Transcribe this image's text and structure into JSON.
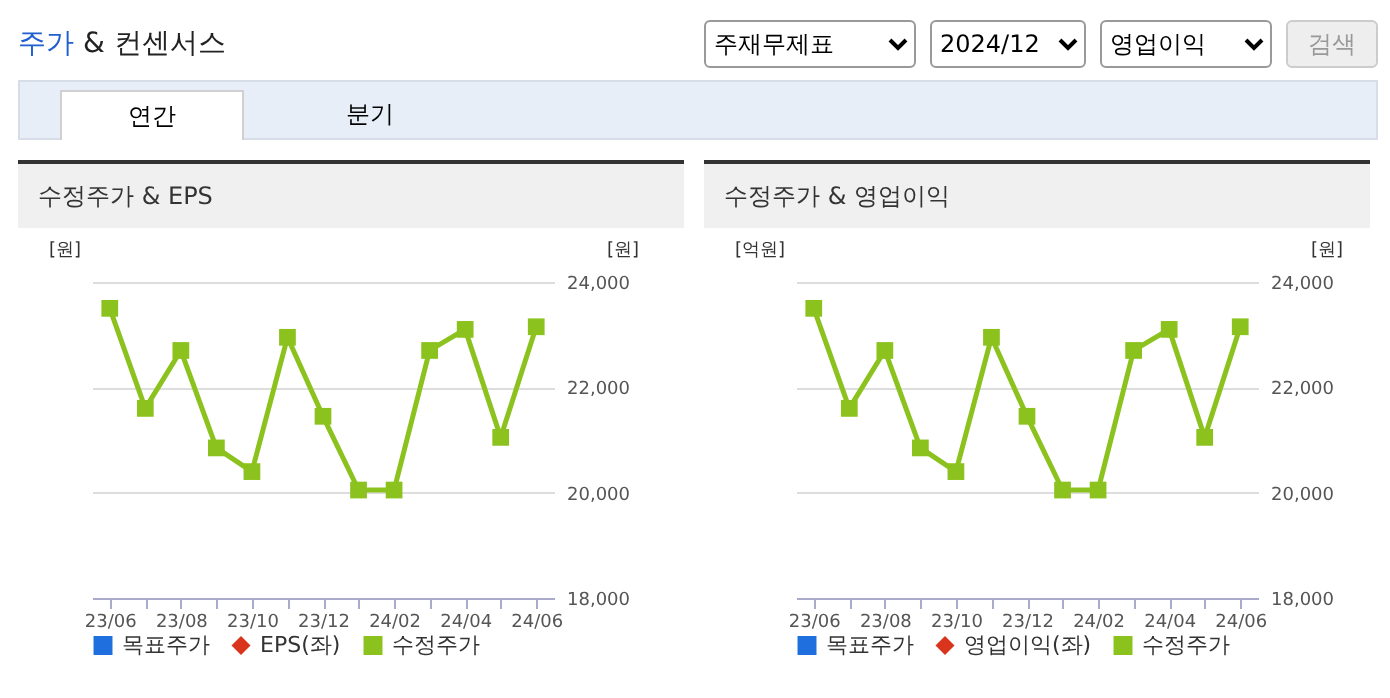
{
  "chart_data": [
    {
      "type": "other",
      "title": "주가 & 컨센서스",
      "annotations": [
        "주재무제표",
        "2024/12",
        "영업이익",
        "검색",
        "연간",
        "분기"
      ]
    },
    {
      "type": "line",
      "title": "수정주가 & EPS",
      "categories": [
        "23/06",
        null,
        "23/08",
        null,
        "23/10",
        null,
        "23/12",
        null,
        "24/02",
        null,
        "24/04",
        null,
        "24/06"
      ],
      "ylabel": "[원]",
      "y2label": "[원]",
      "y2lim": [
        18000,
        24000
      ],
      "y2ticks": [
        {
          "value": 18000,
          "label": "18,000"
        },
        {
          "value": 20000,
          "label": "20,000"
        },
        {
          "value": 22000,
          "label": "22,000"
        },
        {
          "value": 24000,
          "label": "24,000"
        }
      ],
      "grid": "y",
      "legend": "bottom",
      "series": [
        {
          "name": "목표주가",
          "type": "scatter",
          "marker": "square",
          "color": "#1f6fde",
          "axis": "y",
          "values": [
            null,
            null,
            null,
            null,
            null,
            null,
            null,
            null,
            null,
            null,
            null,
            null,
            null
          ]
        },
        {
          "name": "EPS(좌)",
          "type": "line",
          "marker": "diamond",
          "color": "#d9341c",
          "axis": "y",
          "values": [
            null,
            null,
            null,
            null,
            null,
            null,
            null,
            null,
            null,
            null,
            null,
            null,
            null
          ]
        },
        {
          "name": "수정주가",
          "type": "line",
          "marker": "square",
          "color": "#8cc21e",
          "axis": "y2",
          "values": [
            23500,
            21600,
            22700,
            20850,
            20400,
            22950,
            21450,
            20050,
            20050,
            22700,
            23100,
            21050,
            23150
          ]
        }
      ]
    },
    {
      "type": "line",
      "title": "수정주가 & 영업이익",
      "categories": [
        "23/06",
        null,
        "23/08",
        null,
        "23/10",
        null,
        "23/12",
        null,
        "24/02",
        null,
        "24/04",
        null,
        "24/06"
      ],
      "ylabel": "[억원]",
      "y2label": "[원]",
      "y2lim": [
        18000,
        24000
      ],
      "y2ticks": [
        {
          "value": 18000,
          "label": "18,000"
        },
        {
          "value": 20000,
          "label": "20,000"
        },
        {
          "value": 22000,
          "label": "22,000"
        },
        {
          "value": 24000,
          "label": "24,000"
        }
      ],
      "grid": "y",
      "legend": "bottom",
      "series": [
        {
          "name": "목표주가",
          "type": "scatter",
          "marker": "square",
          "color": "#1f6fde",
          "axis": "y",
          "values": [
            null,
            null,
            null,
            null,
            null,
            null,
            null,
            null,
            null,
            null,
            null,
            null,
            null
          ]
        },
        {
          "name": "영업이익(좌)",
          "type": "line",
          "marker": "diamond",
          "color": "#d9341c",
          "axis": "y",
          "values": [
            null,
            null,
            null,
            null,
            null,
            null,
            null,
            null,
            null,
            null,
            null,
            null,
            null
          ]
        },
        {
          "name": "수정주가",
          "type": "line",
          "marker": "square",
          "color": "#8cc21e",
          "axis": "y2",
          "values": [
            23500,
            21600,
            22700,
            20850,
            20400,
            22950,
            21450,
            20050,
            20050,
            22700,
            23100,
            21050,
            23150
          ]
        }
      ]
    }
  ]
}
